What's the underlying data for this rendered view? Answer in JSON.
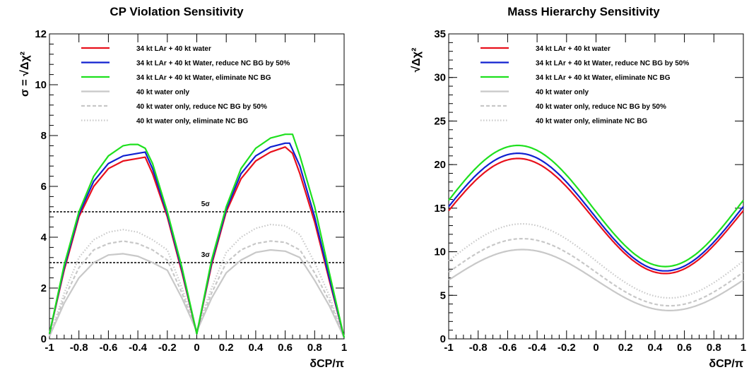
{
  "chart_data": [
    {
      "type": "line",
      "title": "CP Violation Sensitivity",
      "xlabel": "δCP/π",
      "ylabel": "σ = √Δχ²",
      "xlim": [
        -1,
        1
      ],
      "ylim": [
        0,
        12
      ],
      "xticks": [
        "-1",
        "-0.8",
        "-0.6",
        "-0.4",
        "-0.2",
        "0",
        "0.2",
        "0.4",
        "0.6",
        "0.8",
        "1"
      ],
      "yticks": [
        "0",
        "2",
        "4",
        "6",
        "8",
        "10",
        "12"
      ],
      "legend_position": "top",
      "reference_lines": [
        {
          "y": 5,
          "label": "5σ"
        },
        {
          "y": 3,
          "label": "3σ"
        }
      ],
      "series": [
        {
          "name": "34 kt LAr + 40 kt water",
          "color": "#e8101c",
          "style": "solid",
          "x": [
            -1,
            -0.9,
            -0.8,
            -0.7,
            -0.6,
            -0.5,
            -0.4,
            -0.35,
            -0.3,
            -0.2,
            -0.1,
            0,
            0.1,
            0.2,
            0.3,
            0.4,
            0.5,
            0.6,
            0.65,
            0.7,
            0.8,
            0.9,
            1
          ],
          "y": [
            0.2,
            2.7,
            4.8,
            6.0,
            6.7,
            7.0,
            7.1,
            7.15,
            6.5,
            4.8,
            2.6,
            0.2,
            2.9,
            5.0,
            6.3,
            7.0,
            7.35,
            7.55,
            7.3,
            6.5,
            4.6,
            2.3,
            0.05
          ]
        },
        {
          "name": "34 kt LAr + 40 kt Water, reduce NC BG by 50%",
          "color": "#1020d0",
          "style": "solid",
          "x": [
            -1,
            -0.9,
            -0.8,
            -0.7,
            -0.6,
            -0.5,
            -0.4,
            -0.35,
            -0.3,
            -0.2,
            -0.1,
            0,
            0.1,
            0.2,
            0.3,
            0.4,
            0.5,
            0.6,
            0.63,
            0.7,
            0.8,
            0.9,
            1
          ],
          "y": [
            0.2,
            2.8,
            4.9,
            6.2,
            6.9,
            7.2,
            7.3,
            7.35,
            6.7,
            4.9,
            2.7,
            0.2,
            3.0,
            5.1,
            6.5,
            7.2,
            7.55,
            7.7,
            7.7,
            6.8,
            4.8,
            2.4,
            0.05
          ]
        },
        {
          "name": "34 kt LAr + 40 kt Water, eliminate NC BG",
          "color": "#1ee01e",
          "style": "solid",
          "x": [
            -1,
            -0.9,
            -0.8,
            -0.7,
            -0.6,
            -0.5,
            -0.45,
            -0.4,
            -0.35,
            -0.3,
            -0.2,
            -0.1,
            0,
            0.1,
            0.2,
            0.3,
            0.4,
            0.5,
            0.6,
            0.65,
            0.7,
            0.8,
            0.9,
            1
          ],
          "y": [
            0.2,
            2.9,
            5.0,
            6.4,
            7.2,
            7.6,
            7.65,
            7.65,
            7.5,
            6.9,
            5.0,
            2.8,
            0.2,
            3.1,
            5.2,
            6.7,
            7.5,
            7.9,
            8.05,
            8.05,
            7.2,
            5.2,
            2.6,
            0.05
          ]
        },
        {
          "name": "40 kt water only",
          "color": "#c8c8c8",
          "style": "solid",
          "x": [
            -1,
            -0.9,
            -0.8,
            -0.7,
            -0.6,
            -0.5,
            -0.4,
            -0.3,
            -0.2,
            -0.1,
            0,
            0.1,
            0.2,
            0.3,
            0.4,
            0.5,
            0.6,
            0.7,
            0.8,
            0.9,
            1
          ],
          "y": [
            0.1,
            1.4,
            2.4,
            3.0,
            3.3,
            3.35,
            3.25,
            3.0,
            2.7,
            1.6,
            0.3,
            1.6,
            2.6,
            3.1,
            3.4,
            3.5,
            3.45,
            3.2,
            2.3,
            1.3,
            0.05
          ]
        },
        {
          "name": "40 kt water only, reduce NC BG by 50%",
          "color": "#c8c8c8",
          "style": "dashed",
          "x": [
            -1,
            -0.9,
            -0.8,
            -0.7,
            -0.6,
            -0.5,
            -0.4,
            -0.3,
            -0.2,
            -0.1,
            0,
            0.1,
            0.2,
            0.3,
            0.4,
            0.5,
            0.6,
            0.7,
            0.8,
            0.9,
            1
          ],
          "y": [
            0.1,
            1.6,
            2.8,
            3.5,
            3.75,
            3.85,
            3.75,
            3.5,
            3.1,
            1.8,
            0.3,
            1.8,
            3.0,
            3.5,
            3.75,
            3.85,
            3.8,
            3.5,
            2.6,
            1.5,
            0.05
          ]
        },
        {
          "name": "40 kt water only, eliminate NC BG",
          "color": "#c8c8c8",
          "style": "dotted",
          "x": [
            -1,
            -0.9,
            -0.8,
            -0.7,
            -0.6,
            -0.5,
            -0.4,
            -0.3,
            -0.2,
            -0.1,
            0,
            0.1,
            0.2,
            0.3,
            0.4,
            0.5,
            0.6,
            0.7,
            0.8,
            0.9,
            1
          ],
          "y": [
            0.1,
            1.8,
            3.2,
            3.9,
            4.2,
            4.3,
            4.2,
            3.9,
            3.5,
            2.0,
            0.35,
            2.0,
            3.4,
            4.0,
            4.35,
            4.5,
            4.45,
            4.1,
            3.0,
            1.7,
            0.05
          ]
        }
      ]
    },
    {
      "type": "line",
      "title": "Mass Hierarchy Sensitivity",
      "xlabel": "δCP/π",
      "ylabel": "√Δχ²",
      "xlim": [
        -1,
        1
      ],
      "ylim": [
        0,
        35
      ],
      "xticks": [
        "-1",
        "-0.8",
        "-0.6",
        "-0.4",
        "-0.2",
        "0",
        "0.2",
        "0.4",
        "0.6",
        "0.8",
        "1"
      ],
      "yticks": [
        "0",
        "5",
        "10",
        "15",
        "20",
        "25",
        "30",
        "35"
      ],
      "legend_position": "top",
      "series": [
        {
          "name": "34 kt LAr + 40 kt water",
          "color": "#e8101c",
          "style": "solid",
          "mean": 14.1,
          "amp": 6.6,
          "phase": 0.53
        },
        {
          "name": "34 kt LAr + 40 kt Water, reduce NC BG by 50%",
          "color": "#1020d0",
          "style": "solid",
          "mean": 14.55,
          "amp": 6.75,
          "phase": 0.53
        },
        {
          "name": "34 kt LAr + 40 kt Water, eliminate NC BG",
          "color": "#1ee01e",
          "style": "solid",
          "mean": 15.25,
          "amp": 6.95,
          "phase": 0.53
        },
        {
          "name": "40 kt water only",
          "color": "#c8c8c8",
          "style": "solid",
          "mean": 6.75,
          "amp": 3.5,
          "phase": 0.5
        },
        {
          "name": "40 kt water only, reduce NC BG by 50%",
          "color": "#c8c8c8",
          "style": "dashed",
          "mean": 7.65,
          "amp": 3.85,
          "phase": 0.5
        },
        {
          "name": "40 kt water only, eliminate NC BG",
          "color": "#c8c8c8",
          "style": "dotted",
          "mean": 8.95,
          "amp": 4.25,
          "phase": 0.5
        }
      ]
    }
  ]
}
